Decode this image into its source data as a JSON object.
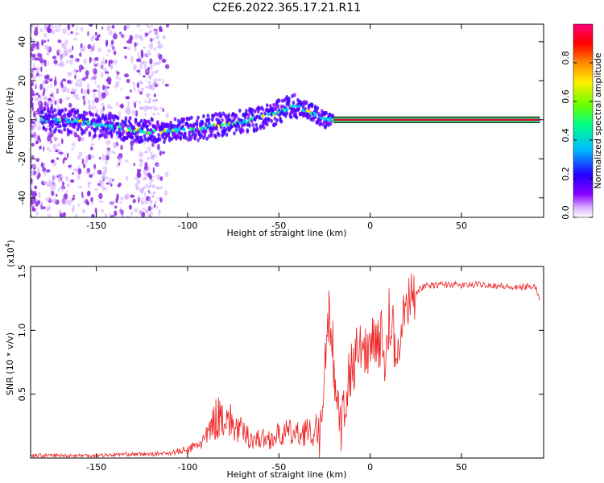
{
  "title": "C2E6.2022.365.17.21.R11",
  "colors": {
    "snr_line": "#ee2222",
    "center_line": "#e8004a",
    "spectral_scale": [
      "#ffffff",
      "#d9b3ff",
      "#8800ff",
      "#2200ff",
      "#00bbff",
      "#00ff88",
      "#66ff00",
      "#ffee00",
      "#ff8800",
      "#ff0000",
      "#ff0077"
    ]
  },
  "chart_data": [
    {
      "type": "heatmap",
      "panel": "spectrogram",
      "xlabel": "Height of straight line (km)",
      "ylabel": "Frequency (Hz)",
      "xlim": [
        -186,
        95
      ],
      "ylim": [
        -50,
        49
      ],
      "xticks": [
        -150,
        -100,
        -50,
        0,
        50
      ],
      "yticks": [
        -40,
        -20,
        0,
        20,
        40
      ],
      "colorbar": {
        "label": "Normalized spectral amplitude",
        "range": [
          0,
          1
        ],
        "ticks": [
          "0.0",
          "0.2",
          "0.4",
          "0.6",
          "0.8"
        ]
      },
      "ridge": {
        "x": [
          -180,
          -160,
          -150,
          -140,
          -130,
          -120,
          -110,
          -100,
          -90,
          -80,
          -70,
          -60,
          -50,
          -45,
          -40,
          -35,
          -30,
          -25,
          -20,
          -10,
          0,
          5,
          10,
          15,
          20,
          50,
          93
        ],
        "y": [
          0,
          -1,
          -3,
          -4,
          -5,
          -6,
          -6,
          -5,
          -4,
          -2,
          -1,
          1,
          4,
          6,
          7,
          5,
          3,
          0,
          0,
          0,
          0,
          -2,
          -1,
          0,
          0,
          0,
          0
        ]
      },
      "stable_tone": {
        "x_start": -20,
        "x_end": 93,
        "frequency": 0
      }
    },
    {
      "type": "line",
      "panel": "snr",
      "xlabel": "Height of straight line (km)",
      "ylabel": "SNR (10 * v/v)",
      "y_multiplier": "(x10",
      "y_multiplier_exp": "4",
      "y_multiplier_close": ")",
      "xlim": [
        -186,
        95
      ],
      "ylim": [
        0,
        1.5
      ],
      "xticks": [
        -150,
        -100,
        -50,
        0,
        50
      ],
      "yticks": [
        0.5,
        1.0,
        1.5
      ],
      "ytick_labels": [
        "0.5",
        "1.0",
        "1.5"
      ],
      "series": [
        {
          "x": [
            -186,
            -170,
            -150,
            -135,
            -120,
            -110,
            -100,
            -95,
            -90,
            -85,
            -80,
            -75,
            -70,
            -65,
            -60,
            -55,
            -50,
            -45,
            -40,
            -35,
            -30,
            -28,
            -26,
            -24,
            -22,
            -20,
            -18,
            -16,
            -14,
            -12,
            -10,
            -8,
            -6,
            -4,
            -2,
            0,
            2,
            4,
            6,
            8,
            10,
            12,
            14,
            16,
            18,
            20,
            22,
            25,
            30,
            35,
            40,
            45,
            50,
            60,
            70,
            80,
            85,
            90,
            93
          ],
          "y": [
            0.02,
            0.02,
            0.02,
            0.03,
            0.03,
            0.04,
            0.06,
            0.1,
            0.15,
            0.3,
            0.35,
            0.25,
            0.2,
            0.15,
            0.15,
            0.15,
            0.18,
            0.2,
            0.18,
            0.22,
            0.15,
            0.1,
            0.3,
            0.9,
            1.0,
            0.7,
            0.4,
            0.2,
            0.4,
            0.6,
            0.7,
            0.8,
            0.85,
            0.8,
            0.85,
            0.9,
            1.0,
            0.9,
            0.95,
            0.8,
            1.0,
            1.05,
            0.75,
            0.95,
            1.1,
            1.15,
            1.25,
            1.3,
            1.35,
            1.35,
            1.36,
            1.36,
            1.35,
            1.36,
            1.35,
            1.33,
            1.34,
            1.35,
            1.25
          ]
        }
      ]
    }
  ]
}
